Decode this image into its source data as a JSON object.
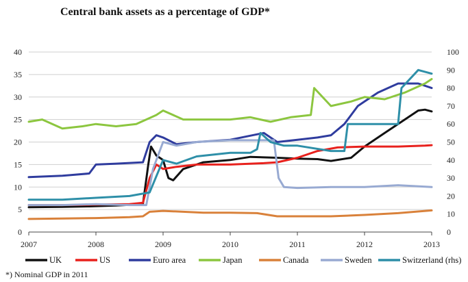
{
  "chart_data": {
    "type": "line",
    "title": "Central bank assets as a percentage of GDP*",
    "footnote": "*) Nominal GDP in 2011",
    "xlim": [
      2007,
      2013
    ],
    "x_ticks": [
      "2007",
      "2008",
      "2009",
      "2010",
      "2011",
      "2012",
      "2013"
    ],
    "ylim_left": [
      0,
      40
    ],
    "y_ticks_left": [
      "0",
      "5",
      "10",
      "15",
      "20",
      "25",
      "30",
      "35",
      "40"
    ],
    "ylim_right": [
      0,
      100
    ],
    "y_ticks_right": [
      "0",
      "10",
      "20",
      "30",
      "40",
      "50",
      "60",
      "70",
      "80",
      "90",
      "100"
    ],
    "grid": "horizontal",
    "legend_position": "bottom",
    "series": [
      {
        "name": "UK",
        "color": "#111111",
        "axis": "left",
        "x": [
          2007,
          2007.5,
          2007.9,
          2008.3,
          2008.7,
          2008.78,
          2008.82,
          2008.9,
          2009.0,
          2009.08,
          2009.15,
          2009.3,
          2009.6,
          2010.0,
          2010.3,
          2010.7,
          2011.0,
          2011.3,
          2011.5,
          2011.8,
          2012.0,
          2012.3,
          2012.6,
          2012.8,
          2012.9,
          2013.0
        ],
        "values": [
          5.5,
          5.6,
          5.7,
          5.9,
          6.2,
          15,
          19,
          17,
          16,
          12,
          11.5,
          14,
          15.5,
          16,
          16.7,
          16.5,
          16.3,
          16.2,
          15.8,
          16.5,
          19,
          22,
          25,
          27,
          27.2,
          26.8
        ]
      },
      {
        "name": "US",
        "color": "#e8211d",
        "axis": "left",
        "x": [
          2007,
          2007.5,
          2008.0,
          2008.5,
          2008.7,
          2008.8,
          2008.9,
          2009.0,
          2009.2,
          2009.5,
          2010.0,
          2010.5,
          2010.7,
          2011.0,
          2011.3,
          2011.6,
          2012.0,
          2012.5,
          2012.9,
          2013.0
        ],
        "values": [
          6,
          6,
          6.1,
          6.2,
          6.5,
          12,
          15,
          14,
          14.5,
          15,
          15,
          15.3,
          15.5,
          16.5,
          18,
          18.8,
          19,
          19,
          19.2,
          19.3
        ]
      },
      {
        "name": "Euro area",
        "color": "#2f3c9e",
        "axis": "left",
        "x": [
          2007,
          2007.5,
          2007.9,
          2008.0,
          2008.3,
          2008.7,
          2008.8,
          2008.9,
          2009.0,
          2009.2,
          2009.5,
          2010.0,
          2010.5,
          2010.7,
          2011.0,
          2011.3,
          2011.5,
          2011.7,
          2011.9,
          2012.0,
          2012.2,
          2012.5,
          2012.8,
          2013.0
        ],
        "values": [
          12.2,
          12.5,
          13,
          15,
          15.2,
          15.5,
          20,
          21.5,
          21,
          19.5,
          20,
          20.5,
          22,
          20,
          20.5,
          21,
          21.5,
          24,
          28,
          29,
          31,
          33,
          33,
          32
        ]
      },
      {
        "name": "Japan",
        "color": "#8cc63f",
        "axis": "left",
        "x": [
          2007,
          2007.2,
          2007.5,
          2007.8,
          2008.0,
          2008.3,
          2008.6,
          2008.9,
          2009.0,
          2009.3,
          2009.6,
          2010.0,
          2010.3,
          2010.6,
          2010.9,
          2011.2,
          2011.25,
          2011.5,
          2011.8,
          2012.0,
          2012.3,
          2012.6,
          2012.9,
          2013.0
        ],
        "values": [
          24.5,
          25,
          23,
          23.5,
          24,
          23.5,
          24,
          26,
          27,
          25,
          25,
          25,
          25.5,
          24.5,
          25.5,
          26,
          32,
          28,
          29,
          30,
          29.5,
          31,
          33,
          34
        ]
      },
      {
        "name": "Canada",
        "color": "#d9813a",
        "axis": "left",
        "x": [
          2007,
          2007.5,
          2008.0,
          2008.5,
          2008.7,
          2008.8,
          2009.0,
          2009.3,
          2009.6,
          2010.0,
          2010.4,
          2010.7,
          2011.0,
          2011.5,
          2012.0,
          2012.5,
          2013.0
        ],
        "values": [
          2.9,
          3,
          3.1,
          3.3,
          3.5,
          4.5,
          4.7,
          4.5,
          4.3,
          4.3,
          4.2,
          3.5,
          3.5,
          3.5,
          3.8,
          4.2,
          4.8
        ]
      },
      {
        "name": "Sweden",
        "color": "#98aad2",
        "axis": "right",
        "x": [
          2007,
          2007.5,
          2008.0,
          2008.5,
          2008.75,
          2008.85,
          2008.95,
          2009.0,
          2009.2,
          2009.5,
          2010.0,
          2010.4,
          2010.65,
          2010.72,
          2010.8,
          2011.0,
          2011.5,
          2012.0,
          2012.5,
          2013.0
        ],
        "values": [
          15,
          15,
          15.5,
          15,
          15,
          35,
          45,
          50,
          48,
          50,
          51,
          51,
          51,
          30,
          25,
          24.5,
          25,
          25,
          26,
          25
        ]
      },
      {
        "name": "Switzerland (rhs)",
        "color": "#2e8fa8",
        "axis": "right",
        "x": [
          2007,
          2007.5,
          2008.0,
          2008.5,
          2008.8,
          2009.0,
          2009.2,
          2009.5,
          2010.0,
          2010.3,
          2010.4,
          2010.45,
          2010.6,
          2010.8,
          2011.0,
          2011.5,
          2011.7,
          2011.75,
          2012.0,
          2012.3,
          2012.5,
          2012.55,
          2012.8,
          2013.0
        ],
        "values": [
          18,
          18,
          19,
          20,
          22,
          40,
          38,
          42,
          44,
          44,
          46,
          55,
          50,
          48,
          48,
          45,
          45,
          60,
          60,
          60,
          60,
          80,
          90,
          88
        ]
      }
    ]
  }
}
